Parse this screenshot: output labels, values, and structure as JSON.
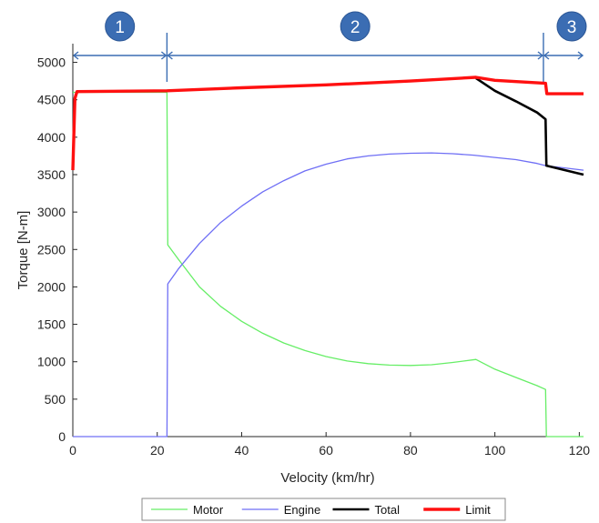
{
  "chart_data": {
    "type": "line",
    "xlabel": "Velocity (km/hr)",
    "ylabel": "Torque [N-m]",
    "xlim": [
      0,
      121
    ],
    "ylim": [
      0,
      5250
    ],
    "x_ticks": [
      "0",
      "20",
      "40",
      "60",
      "80",
      "100",
      "120"
    ],
    "y_ticks": [
      "0",
      "500",
      "1000",
      "1500",
      "2000",
      "2500",
      "3000",
      "3500",
      "4000",
      "4500",
      "5000"
    ],
    "grid": false,
    "legend_position": "bottom",
    "series": [
      {
        "name": "Motor",
        "color": "#66ee66",
        "x": [
          0,
          22.3,
          22.3,
          22.5,
          25,
          30,
          35,
          40,
          45,
          50,
          55,
          60,
          65,
          70,
          75,
          80,
          85,
          90,
          95.5,
          100,
          105,
          110,
          112,
          112.2,
          121
        ],
        "y": [
          4600,
          4600,
          4600,
          2560,
          2370,
          2000,
          1740,
          1540,
          1380,
          1250,
          1150,
          1070,
          1010,
          975,
          955,
          950,
          960,
          990,
          1030,
          900,
          790,
          680,
          630,
          0,
          0
        ]
      },
      {
        "name": "Engine",
        "color": "#6f6ff5",
        "x": [
          0,
          22.3,
          22.5,
          25,
          30,
          35,
          40,
          45,
          50,
          55,
          60,
          65,
          70,
          75,
          80,
          85,
          90,
          95,
          100,
          105,
          110,
          112,
          121
        ],
        "y": [
          0,
          0,
          2040,
          2240,
          2580,
          2860,
          3080,
          3270,
          3420,
          3550,
          3640,
          3710,
          3750,
          3775,
          3785,
          3790,
          3780,
          3760,
          3730,
          3700,
          3650,
          3620,
          3560
        ]
      },
      {
        "name": "Total",
        "color": "#000000",
        "x": [
          95.5,
          100,
          105,
          110,
          112,
          112.2,
          121
        ],
        "y": [
          4790,
          4620,
          4480,
          4330,
          4240,
          3620,
          3500
        ]
      },
      {
        "name": "Limit",
        "color": "#ff1010",
        "x": [
          0,
          0.5,
          1,
          22.3,
          40,
          60,
          80,
          95.5,
          100,
          112,
          112.3,
          121
        ],
        "y": [
          3560,
          4520,
          4610,
          4620,
          4660,
          4700,
          4750,
          4800,
          4760,
          4720,
          4580,
          4580
        ]
      }
    ],
    "regions": [
      {
        "label": "1",
        "x_start": 0,
        "x_end": 22.3,
        "color": "#3b6db3"
      },
      {
        "label": "2",
        "x_start": 22.3,
        "x_end": 111.5,
        "color": "#3b6db3"
      },
      {
        "label": "3",
        "x_start": 111.5,
        "x_end": 121,
        "color": "#3b6db3"
      }
    ]
  }
}
